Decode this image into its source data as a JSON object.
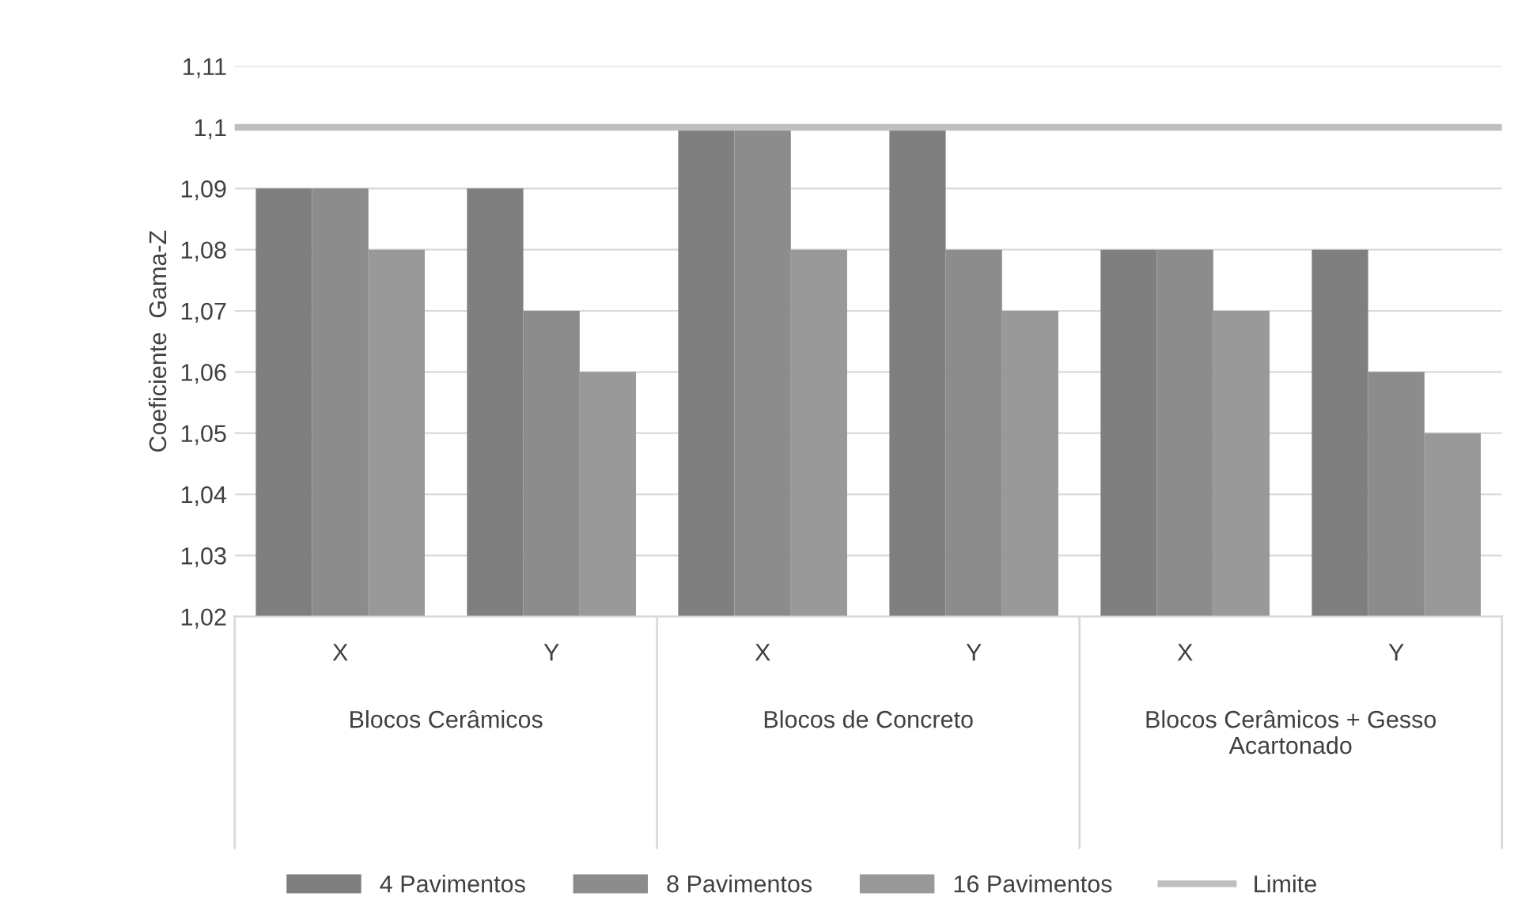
{
  "chart_data": {
    "type": "bar",
    "ylabel": "Coeficiente  Gama-Z",
    "categories": [
      "X",
      "Y",
      "X",
      "Y",
      "X",
      "Y"
    ],
    "series": [
      {
        "name": "4 Pavimentos",
        "color": "#7f7f7f",
        "values": [
          1.09,
          1.09,
          1.1,
          1.1,
          1.08,
          1.08
        ]
      },
      {
        "name": "8 Pavimentos",
        "color": "#8c8c8c",
        "values": [
          1.09,
          1.07,
          1.1,
          1.08,
          1.08,
          1.06
        ]
      },
      {
        "name": "16 Pavimentos",
        "color": "#999999",
        "values": [
          1.08,
          1.06,
          1.08,
          1.07,
          1.07,
          1.05
        ]
      }
    ],
    "ref_lines": [
      {
        "axis": "y",
        "value": 1.1,
        "label": "Limite",
        "color": "#bfbfbf"
      }
    ],
    "annotations": [
      "Blocos Cerâmicos",
      "Blocos de Concreto",
      "Blocos Cerâmicos + Gesso Acartonado"
    ],
    "ylim": [
      1.02,
      1.11
    ],
    "yticks": [
      {
        "value": 1.02,
        "label": "1,02"
      },
      {
        "value": 1.03,
        "label": "1,03"
      },
      {
        "value": 1.04,
        "label": "1,04"
      },
      {
        "value": 1.05,
        "label": "1,05"
      },
      {
        "value": 1.06,
        "label": "1,06"
      },
      {
        "value": 1.07,
        "label": "1,07"
      },
      {
        "value": 1.08,
        "label": "1,08"
      },
      {
        "value": 1.09,
        "label": "1,09"
      },
      {
        "value": 1.1,
        "label": "1,1"
      },
      {
        "value": 1.11,
        "label": "1,11"
      }
    ],
    "grid": "y",
    "legend": "bottom"
  }
}
